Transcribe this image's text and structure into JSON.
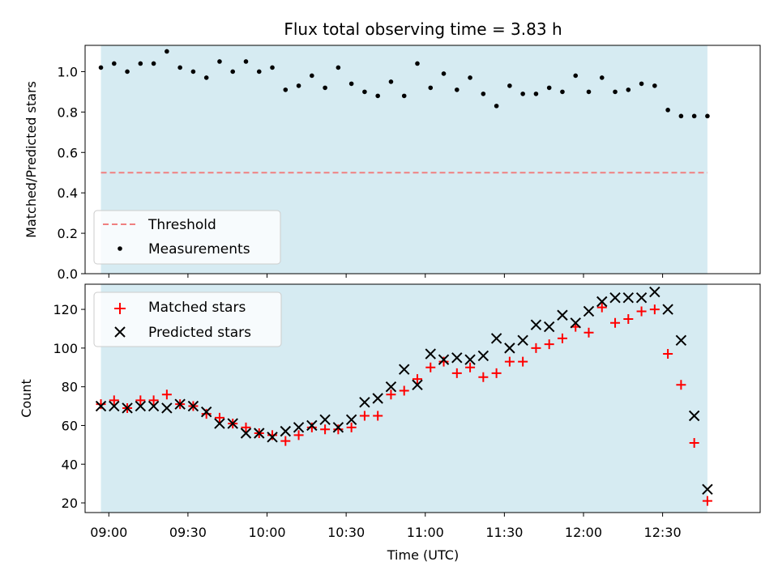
{
  "chart_data": {
    "title": "Flux total observing time = 3.83 h",
    "xlabel": "Time (UTC)",
    "xticks": [
      "09:00",
      "09:30",
      "10:00",
      "10:30",
      "11:00",
      "11:30",
      "12:00",
      "12:30"
    ],
    "xlim": [
      "08:51",
      "13:07"
    ],
    "shaded_span": [
      "08:57",
      "12:47"
    ],
    "colors": {
      "shade": "#add8e6",
      "threshold": "#f08080",
      "measurements": "#000000",
      "matched": "#ff0000",
      "predicted": "#000000"
    },
    "panels": [
      {
        "type": "scatter",
        "ylabel": "Matched/Predicted stars",
        "ylim": [
          0,
          1.13
        ],
        "yticks": [
          0.0,
          0.2,
          0.4,
          0.6,
          0.8,
          1.0
        ],
        "threshold": 0.5,
        "legend": {
          "placement": "lower-left",
          "entries": [
            "Threshold",
            "Measurements"
          ]
        },
        "series": [
          {
            "name": "Measurements",
            "x": [
              "08:57",
              "09:02",
              "09:07",
              "09:12",
              "09:17",
              "09:22",
              "09:27",
              "09:32",
              "09:37",
              "09:42",
              "09:47",
              "09:52",
              "09:57",
              "10:02",
              "10:07",
              "10:12",
              "10:17",
              "10:22",
              "10:27",
              "10:32",
              "10:37",
              "10:42",
              "10:47",
              "10:52",
              "10:57",
              "11:02",
              "11:07",
              "11:12",
              "11:17",
              "11:22",
              "11:27",
              "11:32",
              "11:37",
              "11:42",
              "11:47",
              "11:52",
              "11:57",
              "12:02",
              "12:07",
              "12:12",
              "12:17",
              "12:22",
              "12:27",
              "12:32",
              "12:37",
              "12:42",
              "12:47"
            ],
            "y": [
              1.02,
              1.04,
              1.0,
              1.04,
              1.04,
              1.1,
              1.02,
              1.0,
              0.97,
              1.05,
              1.0,
              1.05,
              1.0,
              1.02,
              0.91,
              0.93,
              0.98,
              0.92,
              1.02,
              0.94,
              0.9,
              0.88,
              0.95,
              0.88,
              1.04,
              0.92,
              0.99,
              0.91,
              0.97,
              0.89,
              0.83,
              0.93,
              0.89,
              0.89,
              0.92,
              0.9,
              0.98,
              0.9,
              0.97,
              0.9,
              0.91,
              0.94,
              0.93,
              0.81,
              0.78,
              0.78,
              0.78
            ]
          }
        ]
      },
      {
        "type": "scatter",
        "ylabel": "Count",
        "ylim": [
          15,
          133
        ],
        "yticks": [
          20,
          40,
          60,
          80,
          100,
          120
        ],
        "legend": {
          "placement": "upper-left",
          "entries": [
            "Matched stars",
            "Predicted stars"
          ]
        },
        "series": [
          {
            "name": "Matched stars",
            "x": [
              "08:57",
              "09:02",
              "09:07",
              "09:12",
              "09:17",
              "09:22",
              "09:27",
              "09:32",
              "09:37",
              "09:42",
              "09:47",
              "09:52",
              "09:57",
              "10:02",
              "10:07",
              "10:12",
              "10:17",
              "10:22",
              "10:27",
              "10:32",
              "10:37",
              "10:42",
              "10:47",
              "10:52",
              "10:57",
              "11:02",
              "11:07",
              "11:12",
              "11:17",
              "11:22",
              "11:27",
              "11:32",
              "11:37",
              "11:42",
              "11:47",
              "11:52",
              "11:57",
              "12:02",
              "12:07",
              "12:12",
              "12:17",
              "12:22",
              "12:27",
              "12:32",
              "12:37",
              "12:42",
              "12:47"
            ],
            "y": [
              71,
              73,
              69,
              73,
              73,
              76,
              71,
              70,
              66,
              64,
              61,
              59,
              56,
              55,
              52,
              55,
              59,
              58,
              58,
              59,
              65,
              65,
              76,
              78,
              84,
              90,
              93,
              87,
              90,
              85,
              87,
              93,
              93,
              100,
              102,
              105,
              111,
              108,
              121,
              113,
              115,
              119,
              120,
              97,
              81,
              51,
              21
            ]
          },
          {
            "name": "Predicted stars",
            "x": [
              "08:57",
              "09:02",
              "09:07",
              "09:12",
              "09:17",
              "09:22",
              "09:27",
              "09:32",
              "09:37",
              "09:42",
              "09:47",
              "09:52",
              "09:57",
              "10:02",
              "10:07",
              "10:12",
              "10:17",
              "10:22",
              "10:27",
              "10:32",
              "10:37",
              "10:42",
              "10:47",
              "10:52",
              "10:57",
              "11:02",
              "11:07",
              "11:12",
              "11:17",
              "11:22",
              "11:27",
              "11:32",
              "11:37",
              "11:42",
              "11:47",
              "11:52",
              "11:57",
              "12:02",
              "12:07",
              "12:12",
              "12:17",
              "12:22",
              "12:27",
              "12:32",
              "12:37",
              "12:42",
              "12:47"
            ],
            "y": [
              70,
              70,
              69,
              70,
              70,
              69,
              71,
              70,
              67,
              61,
              61,
              56,
              56,
              54,
              57,
              59,
              60,
              63,
              59,
              63,
              72,
              74,
              80,
              89,
              81,
              97,
              94,
              95,
              94,
              96,
              105,
              100,
              104,
              112,
              111,
              117,
              113,
              119,
              124,
              126,
              126,
              126,
              129,
              120,
              104,
              65,
              27
            ]
          }
        ]
      }
    ]
  }
}
